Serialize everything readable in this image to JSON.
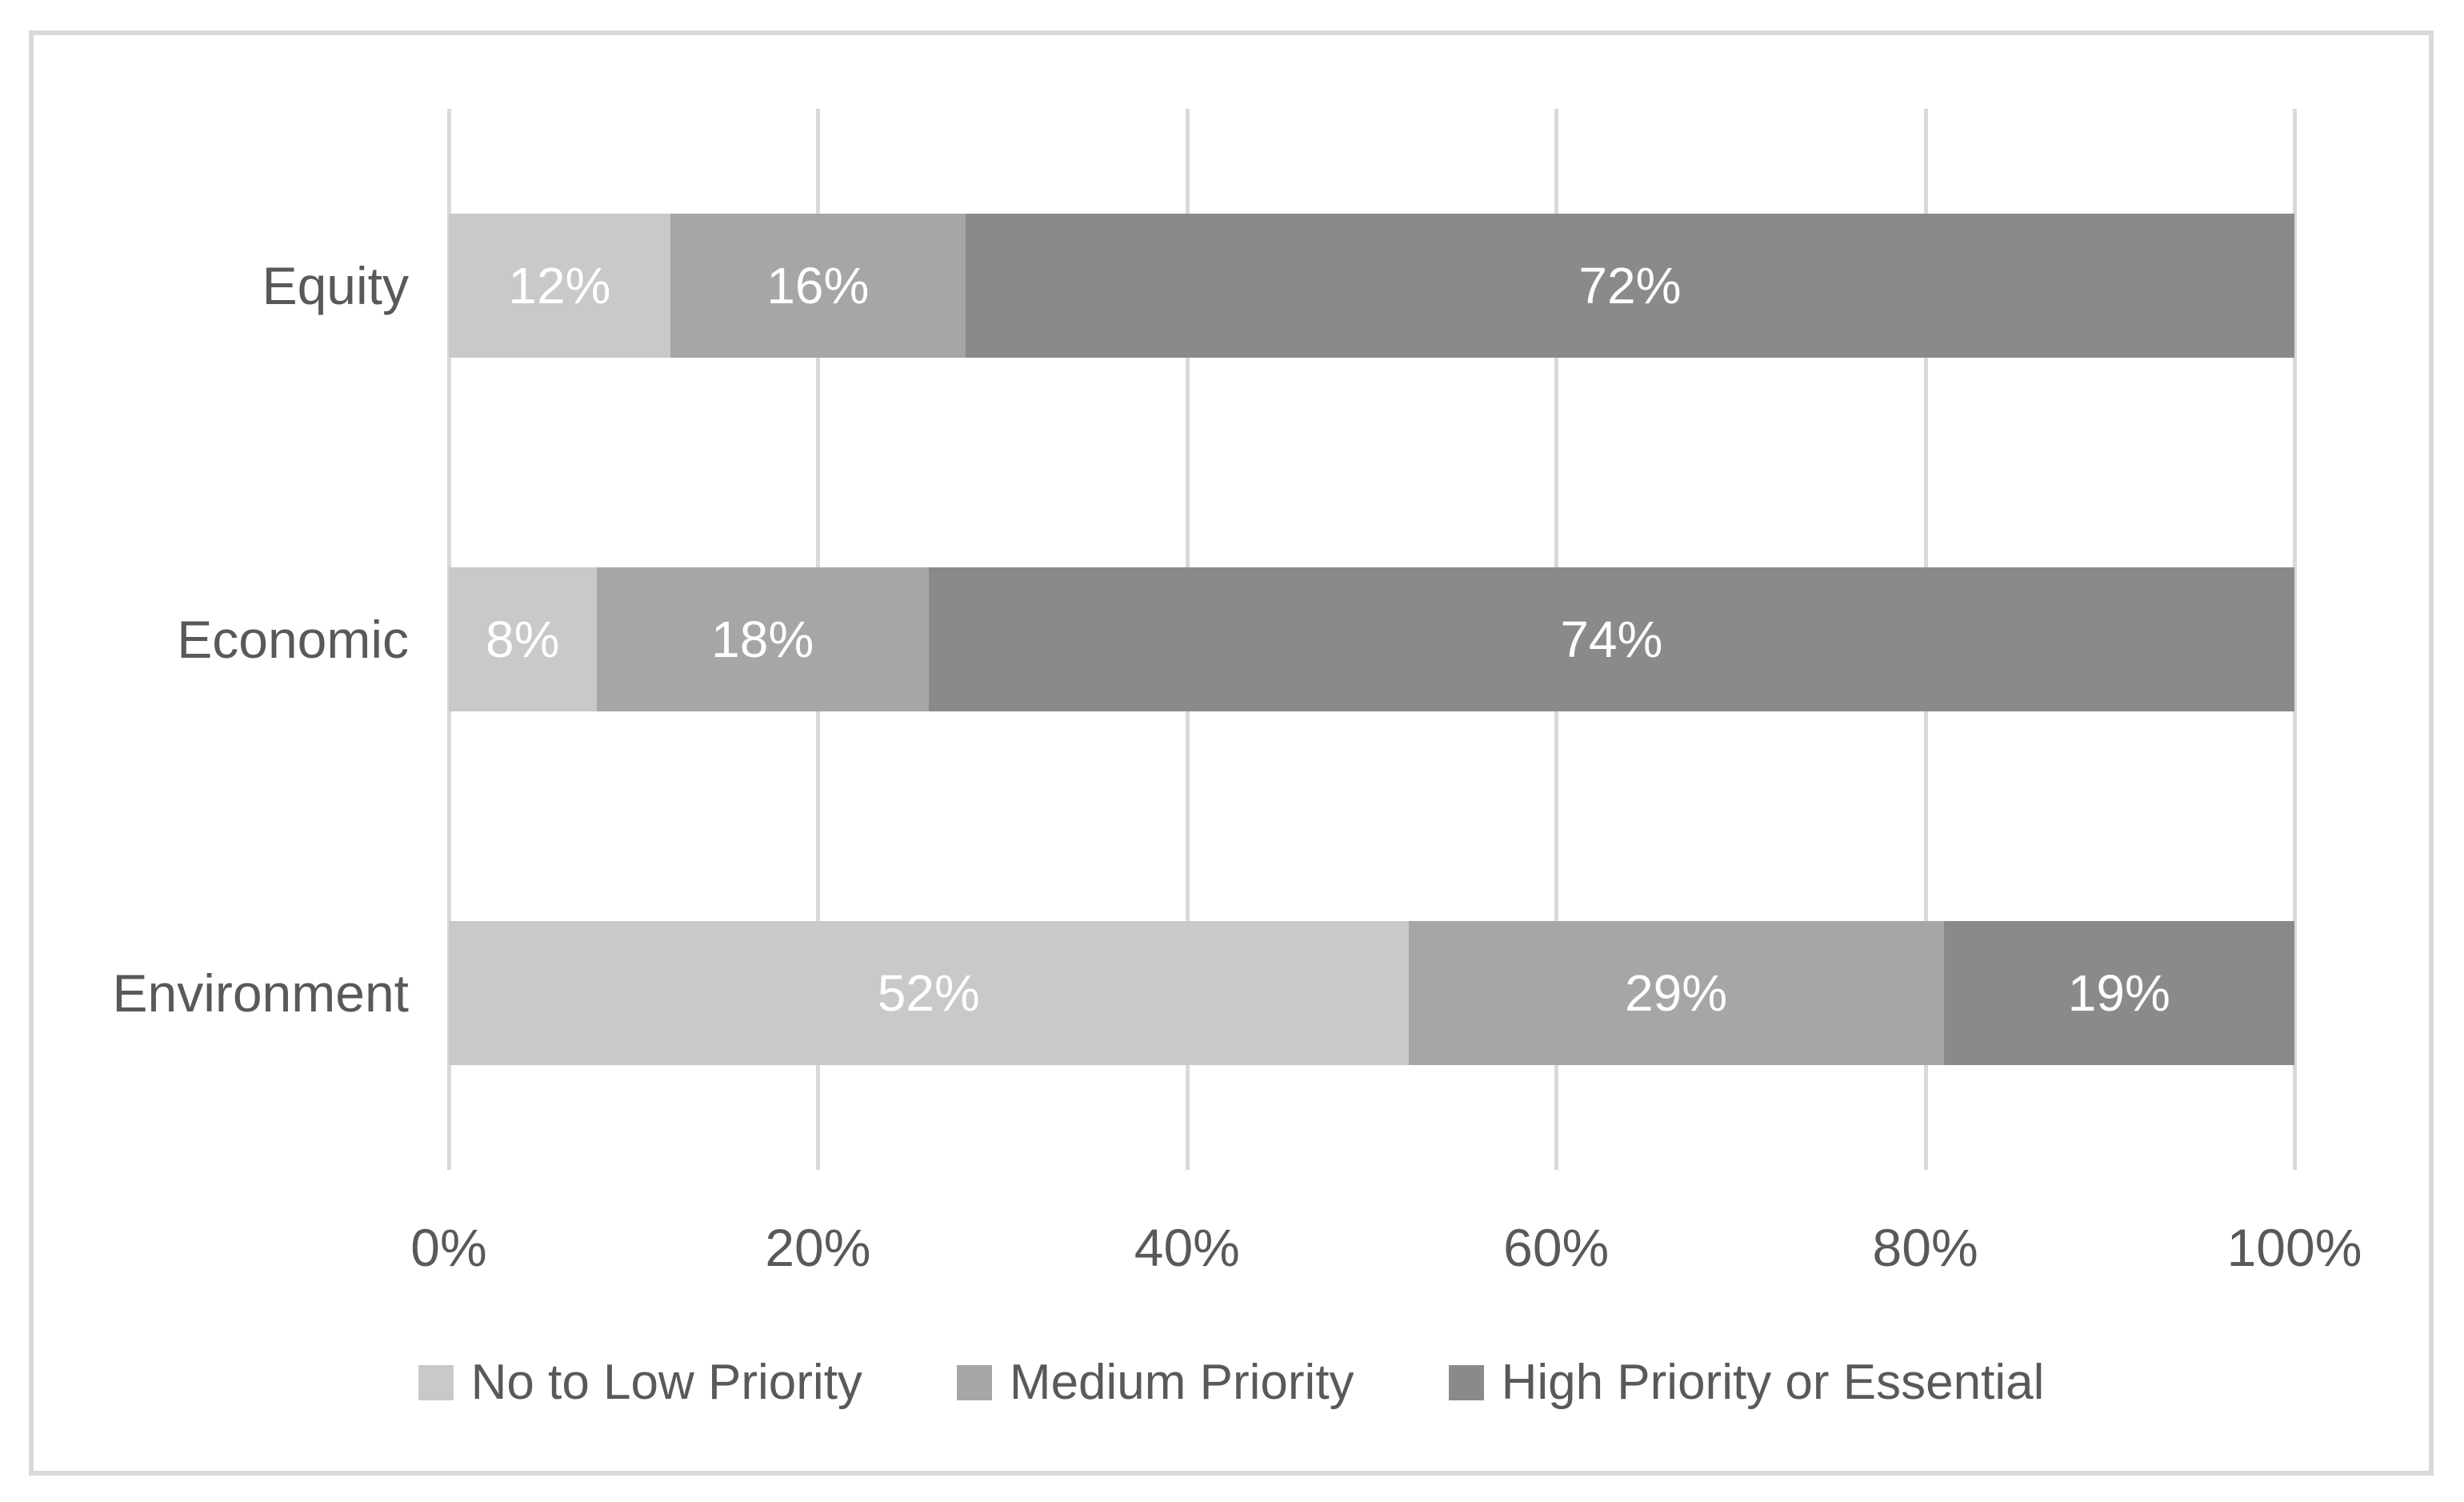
{
  "chart_data": {
    "type": "bar",
    "orientation": "horizontal",
    "stacked": true,
    "title": "",
    "xlabel": "",
    "ylabel": "",
    "categories": [
      "Equity",
      "Economic",
      "Environment"
    ],
    "series": [
      {
        "name": "No to Low Priority",
        "color": "#C9C9C9",
        "values": [
          12,
          8,
          52
        ]
      },
      {
        "name": "Medium Priority",
        "color": "#A6A6A6",
        "values": [
          16,
          18,
          29
        ]
      },
      {
        "name": "High Priority or Essential",
        "color": "#8A8A8A",
        "values": [
          72,
          74,
          19
        ]
      }
    ],
    "data_label_format": "percent",
    "x_ticks": [
      "0%",
      "20%",
      "40%",
      "60%",
      "80%",
      "100%"
    ],
    "xlim": [
      0,
      100
    ],
    "grid": "vertical-major",
    "legend_position": "bottom"
  },
  "colors": {
    "background": "#FFFFFF",
    "frame_border": "#D9D9D9",
    "gridline": "#D9D9D9",
    "axis_text": "#595959",
    "bar_label_text": "#FFFFFF"
  }
}
